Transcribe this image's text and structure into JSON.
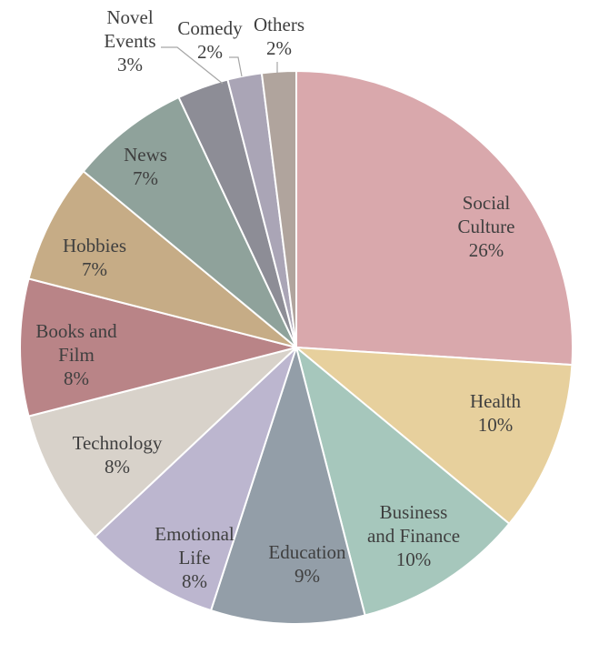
{
  "chart_data": {
    "type": "pie",
    "title": "",
    "slices": [
      {
        "label": "Social Culture",
        "value": 26,
        "display": "26%",
        "color": "#d9a8ac"
      },
      {
        "label": "Health",
        "value": 10,
        "display": "10%",
        "color": "#e7d09d"
      },
      {
        "label": "Business and Finance",
        "value": 10,
        "display": "10%",
        "color": "#a6c7bc"
      },
      {
        "label": "Education",
        "value": 9,
        "display": "9%",
        "color": "#939ea8"
      },
      {
        "label": "Emotional Life",
        "value": 8,
        "display": "8%",
        "color": "#bcb6cf"
      },
      {
        "label": "Technology",
        "value": 8,
        "display": "8%",
        "color": "#d8d2ca"
      },
      {
        "label": "Books and Film",
        "value": 8,
        "display": "8%",
        "color": "#b98487"
      },
      {
        "label": "Hobbies",
        "value": 7,
        "display": "7%",
        "color": "#c6ac86"
      },
      {
        "label": "News",
        "value": 7,
        "display": "7%",
        "color": "#8fa29b"
      },
      {
        "label": "Novel Events",
        "value": 3,
        "display": "3%",
        "color": "#8d8d96"
      },
      {
        "label": "Comedy",
        "value": 2,
        "display": "2%",
        "color": "#aaa5b6"
      },
      {
        "label": "Others",
        "value": 2,
        "display": "2%",
        "color": "#b0a49d"
      }
    ]
  }
}
